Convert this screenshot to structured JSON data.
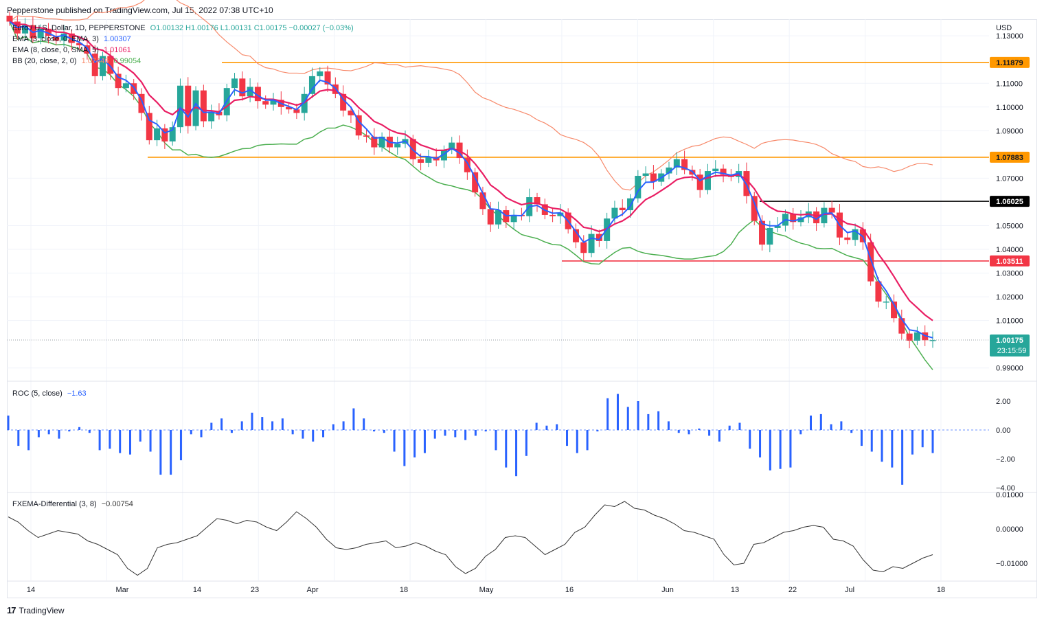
{
  "header": {
    "text": "Pepperstone published on TradingView.com, Jul 15, 2022 07:38 UTC+10"
  },
  "footer": {
    "brand": "TradingView",
    "logo_glyph": "17"
  },
  "legend": {
    "symbol": "Euro / U.S. Dollar, 1D, PEPPERSTONE",
    "ohlc": "O1.00132 H1.00176 L1.00131 C1.00175 −0.00027 (−0.03%)",
    "ema3_label": "EMA (3, close, 0, EMA, 3)",
    "ema3_value": "1.00307",
    "ema8_label": "EMA (8, close, 0, SMA, 5)",
    "ema8_value": "1.01061",
    "bb_label": "BB (20, close, 2, 0)",
    "bb_upper_value": "1.07446",
    "bb_lower_value": "0.99054",
    "roc_label": "ROC (5, close)",
    "roc_value": "−1.63",
    "fxema_label": "FXEMA-Differential (3, 8)",
    "fxema_value": "−0.00754"
  },
  "colors": {
    "up": "#26a69a",
    "down": "#f23645",
    "ema3": "#2962ff",
    "ema8": "#e91e63",
    "bb_upper": "#f7896a",
    "bb_lower": "#4caf50",
    "level_orange": "#ff9800",
    "level_black": "#000000",
    "level_red": "#f23645",
    "roc": "#2962ff",
    "fxema": "#333333",
    "last_price": "#26a69a"
  },
  "price_axis": {
    "currency": "USD",
    "ticks": [
      "1.13000",
      "1.11000",
      "1.10000",
      "1.09000",
      "1.07000",
      "1.05000",
      "1.04000",
      "1.03000",
      "1.02000",
      "1.01000",
      "0.99000"
    ],
    "badges": [
      {
        "name": "level-1-11879",
        "label": "1.11879",
        "type": "orange"
      },
      {
        "name": "level-1-07883",
        "label": "1.07883",
        "type": "orange"
      },
      {
        "name": "level-1-06025",
        "label": "1.06025",
        "type": "black"
      },
      {
        "name": "level-1-03511",
        "label": "1.03511",
        "type": "red"
      }
    ],
    "last_price": {
      "label": "1.00175",
      "countdown": "23:15:59"
    }
  },
  "roc_axis": {
    "ticks": [
      "2.00",
      "0.00",
      "−2.00",
      "−4.00"
    ]
  },
  "fxema_axis": {
    "ticks": [
      "0.01000",
      "0.00000",
      "−0.01000"
    ]
  },
  "time_axis": {
    "labels": [
      "14",
      "Mar",
      "14",
      "23",
      "Apr",
      "18",
      "May",
      "16",
      "Jun",
      "13",
      "22",
      "Jul",
      "18"
    ]
  },
  "chart_data": {
    "type": "candlestick",
    "symbol": "EURUSD",
    "timeframe": "1D",
    "ylim": [
      0.985,
      1.137
    ],
    "levels": [
      {
        "value": 1.11879,
        "color": "orange"
      },
      {
        "value": 1.07883,
        "color": "orange"
      },
      {
        "value": 1.06025,
        "color": "black"
      },
      {
        "value": 1.03511,
        "color": "red"
      }
    ],
    "candles_close": [
      1.136,
      1.131,
      1.1345,
      1.129,
      1.133,
      1.13,
      1.128,
      1.131,
      1.127,
      1.126,
      1.1225,
      1.113,
      1.1215,
      1.114,
      1.108,
      1.11,
      1.1055,
      1.0975,
      1.086,
      1.091,
      1.0855,
      1.0915,
      1.109,
      1.092,
      1.107,
      1.094,
      1.098,
      1.0965,
      1.108,
      1.112,
      1.1045,
      1.1085,
      1.1025,
      1.101,
      1.103,
      1.1,
      1.099,
      1.0975,
      1.1055,
      1.113,
      1.115,
      1.1095,
      1.1055,
      1.0985,
      1.0965,
      1.088,
      1.0875,
      1.083,
      1.0875,
      1.083,
      1.0845,
      1.0865,
      1.078,
      1.0765,
      1.079,
      1.0775,
      1.082,
      1.085,
      1.0785,
      1.0725,
      1.064,
      1.057,
      1.0505,
      1.0565,
      1.0515,
      1.0545,
      1.054,
      1.062,
      1.059,
      1.0545,
      1.054,
      1.0555,
      1.0485,
      1.043,
      1.0385,
      1.0465,
      1.0435,
      1.053,
      1.0575,
      1.0565,
      1.0615,
      1.071,
      1.072,
      1.0685,
      1.072,
      1.0745,
      1.078,
      1.0735,
      1.0715,
      1.065,
      1.073,
      1.074,
      1.0715,
      1.0705,
      1.073,
      1.0625,
      1.052,
      1.042,
      1.049,
      1.05,
      1.055,
      1.0515,
      1.0535,
      1.056,
      1.051,
      1.0575,
      1.0555,
      1.045,
      1.044,
      1.0485,
      1.043,
      1.0265,
      1.018,
      1.018,
      1.011,
      1.0045,
      1.0015,
      1.005,
      1.0017,
      1.0018
    ],
    "ema3_last": 1.00307,
    "ema8_last": 1.01061,
    "bb_upper_last": 1.07446,
    "bb_lower_last": 0.99054,
    "roc_values": [
      1.0,
      -1.1,
      -1.4,
      -0.5,
      -0.3,
      -0.6,
      -0.1,
      0.2,
      -0.2,
      -1.4,
      -1.3,
      -1.6,
      -1.7,
      -0.8,
      -1.5,
      -3.1,
      -3.1,
      -2.1,
      -0.3,
      -0.5,
      0.5,
      0.8,
      -0.2,
      0.6,
      1.2,
      0.9,
      0.6,
      0.8,
      -0.3,
      -0.6,
      -0.8,
      -0.5,
      0.4,
      0.6,
      1.5,
      0.8,
      -0.1,
      -0.2,
      -1.5,
      -2.5,
      -1.9,
      -1.6,
      -0.6,
      -0.4,
      -0.5,
      -0.7,
      -0.4,
      -0.1,
      -1.4,
      -2.6,
      -3.2,
      -1.8,
      0.5,
      0.3,
      0.4,
      -1.1,
      -1.6,
      -1.4,
      -0.1,
      2.2,
      2.5,
      1.6,
      2.0,
      1.1,
      1.3,
      0.6,
      -0.2,
      -0.3,
      0.1,
      -0.4,
      -0.8,
      0.3,
      0.5,
      -1.3,
      -1.9,
      -2.8,
      -2.7,
      -2.6,
      -0.3,
      1.0,
      1.1,
      0.4,
      0.6,
      -0.2,
      -1.1,
      -1.5,
      -2.2,
      -2.6,
      -3.8,
      -1.7,
      -1.2,
      -1.6
    ],
    "fxema_values": [
      0.0035,
      0.002,
      -0.0005,
      -0.0025,
      -0.0015,
      -0.0005,
      -0.001,
      -0.0015,
      -0.0035,
      -0.0045,
      -0.006,
      -0.0075,
      -0.0115,
      -0.0135,
      -0.0115,
      -0.0055,
      -0.0045,
      -0.004,
      -0.003,
      -0.002,
      0.0005,
      0.003,
      0.0025,
      0.0015,
      0.0025,
      0.002,
      0.0005,
      -0.0005,
      0.002,
      0.005,
      0.003,
      0.0005,
      -0.003,
      -0.0055,
      -0.006,
      -0.0055,
      -0.0045,
      -0.004,
      -0.0035,
      -0.0055,
      -0.005,
      -0.004,
      -0.005,
      -0.0065,
      -0.0075,
      -0.011,
      -0.013,
      -0.0115,
      -0.008,
      -0.006,
      -0.0025,
      -0.002,
      -0.0025,
      -0.005,
      -0.0075,
      -0.006,
      -0.0045,
      -0.001,
      0.0005,
      0.004,
      0.007,
      0.0065,
      0.008,
      0.006,
      0.0055,
      0.004,
      0.003,
      0.0015,
      -0.0005,
      -0.001,
      -0.002,
      -0.003,
      -0.0075,
      -0.0105,
      -0.01,
      -0.0045,
      -0.004,
      -0.0025,
      -0.001,
      -0.0005,
      0.0005,
      0.001,
      0.0005,
      -0.003,
      -0.0035,
      -0.005,
      -0.009,
      -0.012,
      -0.0125,
      -0.011,
      -0.0115,
      -0.01,
      -0.0085,
      -0.0075
    ],
    "xlabels": [
      "14",
      "Mar",
      "14",
      "23",
      "Apr",
      "18",
      "May",
      "16",
      "Jun",
      "13",
      "22",
      "Jul",
      "18"
    ]
  }
}
